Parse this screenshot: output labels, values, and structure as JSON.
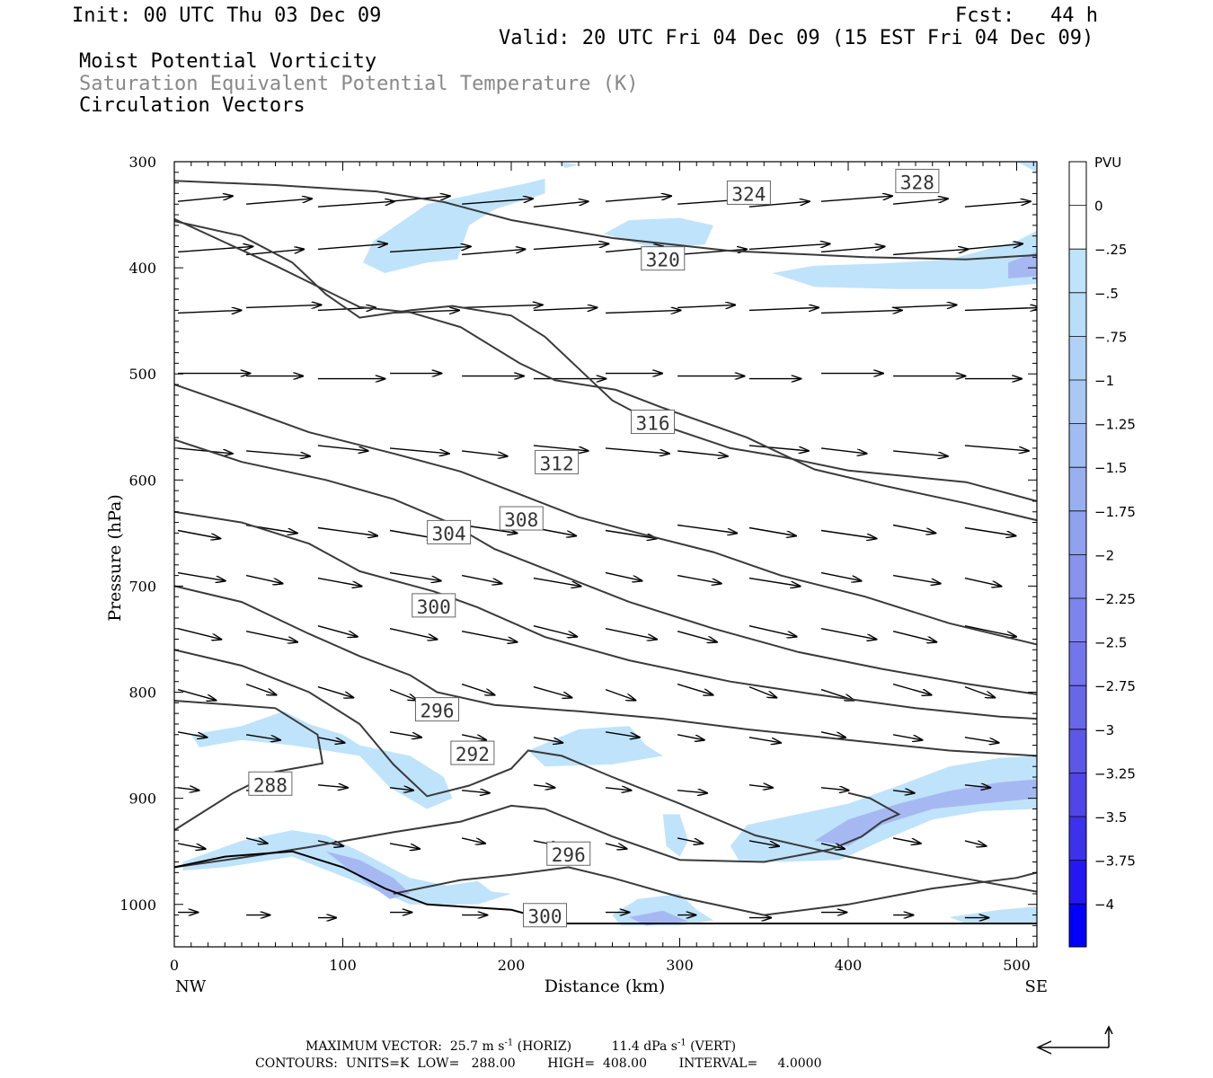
{
  "header": {
    "init": "Init: 00 UTC Thu 03 Dec 09",
    "fcst": "Fcst:   44 h",
    "valid": "Valid: 20 UTC Fri 04 Dec 09 (15 EST Fri 04 Dec 09)",
    "line1": "Moist Potential Vorticity",
    "line2": "Saturation Equivalent Potential Temperature (K)",
    "line3": "Circulation Vectors"
  },
  "footer": {
    "max_vector_label": "MAXIMUM VECTOR:",
    "max_horiz": "25.7 m s",
    "max_horiz_exp": "-1",
    "max_horiz_unit": "(HORIZ)",
    "max_vert": "11.4 dPa s",
    "max_vert_exp": "-1",
    "max_vert_unit": "(VERT)",
    "contours": "CONTOURS:  UNITS=K  LOW=   288.00        HIGH=  408.00        INTERVAL=     4.0000"
  },
  "colors": {
    "contour": "#3a3a3a",
    "shade_light": "#bfe3fb",
    "shade_mid": "#a6b8f2",
    "shade_dark": "#7d87ea",
    "scale_end": "#0000ff"
  },
  "chart_data": {
    "type": "contour",
    "xlabel": "Distance (km)",
    "ylabel": "Pressure (hPa)",
    "x_end_labels": {
      "left": "NW",
      "right": "SE"
    },
    "xlim": [
      0,
      512
    ],
    "ylim": [
      1040,
      300
    ],
    "x_ticks": [
      0,
      100,
      200,
      300,
      400,
      500
    ],
    "y_ticks": [
      300,
      400,
      500,
      600,
      700,
      800,
      900,
      1000
    ],
    "colorbar": {
      "title": "PVU",
      "labels": [
        "0",
        "-.25",
        "-.5",
        "-.75",
        "-1",
        "-1.25",
        "-1.5",
        "-1.75",
        "-2",
        "-2.25",
        "-2.5",
        "-2.75",
        "-3",
        "-3.25",
        "-3.5",
        "-3.75",
        "-4"
      ]
    },
    "contour_labels": [
      {
        "value": "288",
        "x": 57,
        "p": 887
      },
      {
        "value": "292",
        "x": 177,
        "p": 858
      },
      {
        "value": "296",
        "x": 156,
        "p": 817
      },
      {
        "value": "296",
        "x": 234,
        "p": 953
      },
      {
        "value": "300",
        "x": 154,
        "p": 719
      },
      {
        "value": "300",
        "x": 220,
        "p": 1011
      },
      {
        "value": "304",
        "x": 163,
        "p": 650
      },
      {
        "value": "308",
        "x": 206,
        "p": 637
      },
      {
        "value": "312",
        "x": 227,
        "p": 584
      },
      {
        "value": "316",
        "x": 284,
        "p": 546
      },
      {
        "value": "320",
        "x": 290,
        "p": 392
      },
      {
        "value": "324",
        "x": 341,
        "p": 330
      },
      {
        "value": "328",
        "x": 441,
        "p": 319
      }
    ],
    "isentropes": [
      [
        [
          0,
          318
        ],
        [
          60,
          322
        ],
        [
          120,
          328
        ],
        [
          160,
          338
        ],
        [
          200,
          355
        ],
        [
          260,
          372
        ],
        [
          330,
          384
        ],
        [
          410,
          390
        ],
        [
          470,
          392
        ],
        [
          512,
          388
        ]
      ],
      [
        [
          0,
          356
        ],
        [
          40,
          370
        ],
        [
          70,
          395
        ],
        [
          90,
          425
        ],
        [
          110,
          447
        ],
        [
          140,
          440
        ],
        [
          165,
          436
        ],
        [
          200,
          445
        ],
        [
          220,
          465
        ],
        [
          240,
          495
        ],
        [
          260,
          525
        ],
        [
          285,
          546
        ],
        [
          315,
          562
        ],
        [
          330,
          570
        ],
        [
          360,
          578
        ],
        [
          400,
          591
        ],
        [
          470,
          602
        ],
        [
          512,
          620
        ]
      ],
      [
        [
          0,
          354
        ],
        [
          60,
          398
        ],
        [
          110,
          437
        ],
        [
          140,
          442
        ],
        [
          170,
          456
        ],
        [
          205,
          490
        ],
        [
          226,
          506
        ],
        [
          262,
          515
        ],
        [
          290,
          532
        ],
        [
          340,
          560
        ],
        [
          380,
          590
        ],
        [
          420,
          605
        ],
        [
          470,
          622
        ],
        [
          512,
          638
        ]
      ],
      [
        [
          0,
          510
        ],
        [
          40,
          532
        ],
        [
          80,
          555
        ],
        [
          130,
          575
        ],
        [
          170,
          592
        ],
        [
          206,
          614
        ],
        [
          240,
          635
        ],
        [
          280,
          652
        ],
        [
          320,
          668
        ],
        [
          360,
          690
        ],
        [
          410,
          710
        ],
        [
          460,
          735
        ],
        [
          512,
          755
        ]
      ],
      [
        [
          0,
          562
        ],
        [
          40,
          583
        ],
        [
          90,
          600
        ],
        [
          130,
          618
        ],
        [
          163,
          640
        ],
        [
          190,
          665
        ],
        [
          230,
          690
        ],
        [
          270,
          715
        ],
        [
          320,
          740
        ],
        [
          370,
          762
        ],
        [
          420,
          778
        ],
        [
          470,
          792
        ],
        [
          512,
          802
        ]
      ],
      [
        [
          0,
          630
        ],
        [
          40,
          640
        ],
        [
          80,
          660
        ],
        [
          110,
          686
        ],
        [
          154,
          705
        ],
        [
          180,
          720
        ],
        [
          220,
          748
        ],
        [
          270,
          770
        ],
        [
          330,
          790
        ],
        [
          380,
          802
        ],
        [
          440,
          815
        ],
        [
          490,
          823
        ],
        [
          512,
          825
        ]
      ],
      [
        [
          0,
          700
        ],
        [
          40,
          715
        ],
        [
          80,
          745
        ],
        [
          110,
          766
        ],
        [
          140,
          784
        ],
        [
          156,
          800
        ],
        [
          190,
          812
        ],
        [
          240,
          818
        ],
        [
          290,
          825
        ],
        [
          340,
          835
        ],
        [
          400,
          845
        ],
        [
          460,
          855
        ],
        [
          512,
          860
        ]
      ],
      [
        [
          0,
          760
        ],
        [
          40,
          775
        ],
        [
          80,
          800
        ],
        [
          110,
          830
        ],
        [
          130,
          868
        ],
        [
          150,
          898
        ],
        [
          175,
          888
        ],
        [
          200,
          872
        ],
        [
          210,
          855
        ],
        [
          230,
          860
        ],
        [
          260,
          880
        ],
        [
          300,
          905
        ],
        [
          345,
          935
        ],
        [
          400,
          955
        ],
        [
          450,
          970
        ],
        [
          512,
          988
        ]
      ],
      [
        [
          0,
          808
        ],
        [
          35,
          812
        ],
        [
          60,
          815
        ],
        [
          85,
          840
        ],
        [
          88,
          867
        ],
        [
          60,
          875
        ],
        [
          35,
          895
        ],
        [
          0,
          930
        ]
      ],
      [
        [
          0,
          965
        ],
        [
          40,
          956
        ],
        [
          80,
          946
        ],
        [
          130,
          932
        ],
        [
          170,
          922
        ],
        [
          200,
          907
        ],
        [
          220,
          910
        ],
        [
          260,
          936
        ],
        [
          300,
          958
        ],
        [
          350,
          960
        ],
        [
          390,
          948
        ],
        [
          408,
          936
        ],
        [
          420,
          922
        ],
        [
          430,
          915
        ],
        [
          413,
          900
        ],
        [
          400,
          895
        ]
      ],
      [
        [
          130,
          990
        ],
        [
          170,
          977
        ],
        [
          200,
          972
        ],
        [
          234,
          965
        ],
        [
          260,
          975
        ],
        [
          300,
          993
        ],
        [
          350,
          1010
        ],
        [
          400,
          1000
        ],
        [
          450,
          985
        ],
        [
          500,
          975
        ],
        [
          512,
          970
        ]
      ]
    ],
    "boundary_line": [
      [
        0,
        965
      ],
      [
        30,
        955
      ],
      [
        70,
        950
      ],
      [
        100,
        965
      ],
      [
        125,
        985
      ],
      [
        150,
        1000
      ],
      [
        200,
        1005
      ],
      [
        230,
        1018
      ],
      [
        512,
        1018
      ]
    ]
  }
}
